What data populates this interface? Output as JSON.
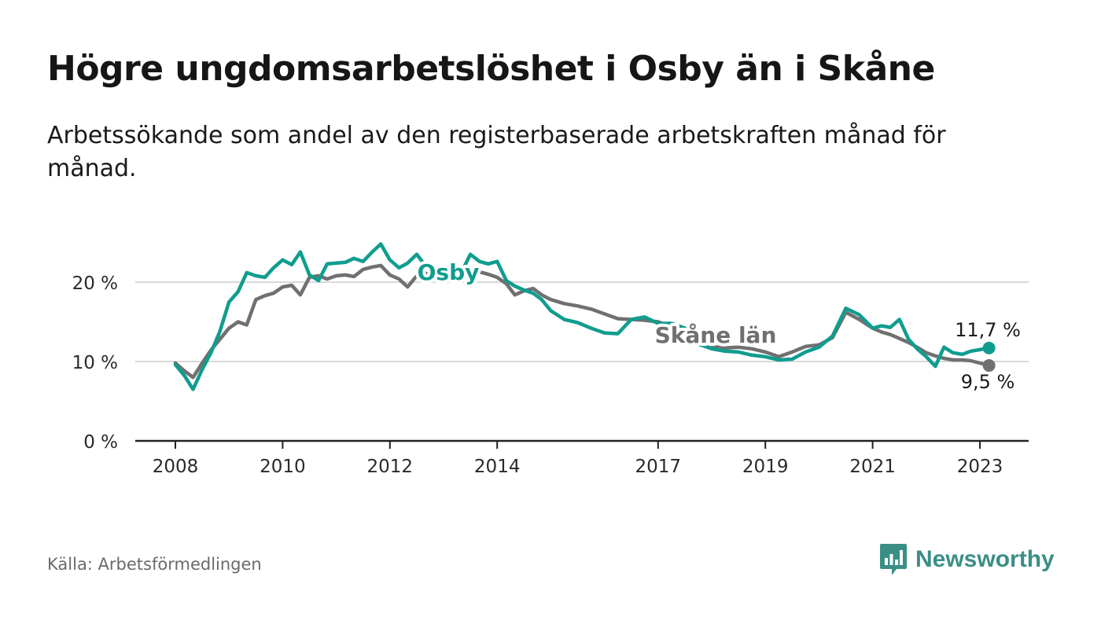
{
  "header": {
    "title": "Högre ungdomsarbetslöshet i Osby än i Skåne",
    "subtitle": "Arbetssökande som andel av den registerbaserade arbetskraften månad för månad."
  },
  "footer": {
    "source": "Källa: Arbetsförmedlingen",
    "brand": "Newsworthy"
  },
  "colors": {
    "osby": "#0f9d8f",
    "skane": "#707070",
    "grid": "#d9d9d9",
    "axis": "#222222",
    "brand": "#3a8f85"
  },
  "chart_data": {
    "type": "line",
    "title": "Högre ungdomsarbetslöshet i Osby än i Skåne",
    "subtitle": "Arbetssökande som andel av den registerbaserade arbetskraften månad för månad.",
    "xlabel": "",
    "ylabel": "",
    "xlim": [
      2008.0,
      2023.25
    ],
    "ylim": [
      0,
      25
    ],
    "yticks": [
      0,
      10,
      20
    ],
    "ytick_labels": [
      "0 %",
      "10 %",
      "20 %"
    ],
    "xticks": [
      2008,
      2010,
      2012,
      2014,
      2017,
      2019,
      2021,
      2023
    ],
    "xtick_labels": [
      "2008",
      "2010",
      "2012",
      "2014",
      "2017",
      "2019",
      "2021",
      "2023"
    ],
    "grid": true,
    "legend": "inline labels",
    "series": [
      {
        "name": "Osby",
        "label_value": "11,7 %",
        "x": [
          2008.0,
          2008.17,
          2008.33,
          2008.5,
          2008.67,
          2008.83,
          2009.0,
          2009.17,
          2009.33,
          2009.5,
          2009.67,
          2009.83,
          2010.0,
          2010.17,
          2010.33,
          2010.5,
          2010.67,
          2010.83,
          2011.0,
          2011.17,
          2011.33,
          2011.5,
          2011.67,
          2011.83,
          2012.0,
          2012.17,
          2012.33,
          2012.5,
          2012.67,
          2013.0,
          2013.33,
          2013.5,
          2013.67,
          2013.83,
          2014.0,
          2014.17,
          2014.33,
          2014.5,
          2014.67,
          2014.83,
          2015.0,
          2015.25,
          2015.5,
          2015.75,
          2016.0,
          2016.25,
          2016.5,
          2016.75,
          2017.0,
          2017.25,
          2017.5,
          2017.75,
          2018.0,
          2018.25,
          2018.5,
          2018.75,
          2019.0,
          2019.25,
          2019.5,
          2019.75,
          2020.0,
          2020.25,
          2020.5,
          2020.75,
          2021.0,
          2021.17,
          2021.33,
          2021.5,
          2021.67,
          2021.83,
          2022.0,
          2022.17,
          2022.33,
          2022.5,
          2022.67,
          2022.83,
          2023.0,
          2023.17
        ],
        "values": [
          9.6,
          8.2,
          6.5,
          9.0,
          11.2,
          13.8,
          17.5,
          18.8,
          21.2,
          20.8,
          20.6,
          21.8,
          22.8,
          22.2,
          23.8,
          20.9,
          20.2,
          22.3,
          22.4,
          22.5,
          23.0,
          22.6,
          23.8,
          24.8,
          22.8,
          21.8,
          22.4,
          23.5,
          22.0,
          21.4,
          21.2,
          23.5,
          22.6,
          22.3,
          22.6,
          20.2,
          19.5,
          19.0,
          18.6,
          17.8,
          16.4,
          15.3,
          14.9,
          14.2,
          13.6,
          13.5,
          15.3,
          15.6,
          14.8,
          14.8,
          14.2,
          12.2,
          11.6,
          11.3,
          11.2,
          10.8,
          10.6,
          10.2,
          10.3,
          11.2,
          11.8,
          13.2,
          16.7,
          15.9,
          14.2,
          14.5,
          14.3,
          15.3,
          12.8,
          11.6,
          10.6,
          9.4,
          11.8,
          11.1,
          10.9,
          11.3,
          11.5,
          11.7
        ]
      },
      {
        "name": "Skåne län",
        "label_value": "9,5 %",
        "x": [
          2008.0,
          2008.17,
          2008.33,
          2008.5,
          2008.67,
          2008.83,
          2009.0,
          2009.17,
          2009.33,
          2009.5,
          2009.67,
          2009.83,
          2010.0,
          2010.17,
          2010.33,
          2010.5,
          2010.67,
          2010.83,
          2011.0,
          2011.17,
          2011.33,
          2011.5,
          2011.67,
          2011.83,
          2012.0,
          2012.17,
          2012.33,
          2012.5,
          2012.67,
          2013.0,
          2013.33,
          2013.5,
          2013.67,
          2013.83,
          2014.0,
          2014.17,
          2014.33,
          2014.5,
          2014.67,
          2014.83,
          2015.0,
          2015.25,
          2015.5,
          2015.75,
          2016.0,
          2016.25,
          2016.5,
          2016.75,
          2017.0,
          2017.25,
          2017.5,
          2017.75,
          2018.0,
          2018.25,
          2018.5,
          2018.75,
          2019.0,
          2019.25,
          2019.5,
          2019.75,
          2020.0,
          2020.25,
          2020.5,
          2020.75,
          2021.0,
          2021.17,
          2021.33,
          2021.5,
          2021.67,
          2021.83,
          2022.0,
          2022.17,
          2022.33,
          2022.5,
          2022.67,
          2022.83,
          2023.0,
          2023.17
        ],
        "values": [
          9.8,
          8.8,
          8.0,
          9.8,
          11.5,
          12.8,
          14.2,
          15.0,
          14.6,
          17.8,
          18.3,
          18.6,
          19.4,
          19.6,
          18.4,
          20.6,
          20.8,
          20.4,
          20.8,
          20.9,
          20.7,
          21.6,
          21.9,
          22.1,
          20.9,
          20.4,
          19.4,
          20.8,
          21.1,
          20.6,
          20.2,
          21.2,
          21.3,
          21.0,
          20.6,
          19.8,
          18.4,
          18.9,
          19.2,
          18.4,
          17.8,
          17.3,
          17.0,
          16.6,
          16.0,
          15.4,
          15.3,
          15.2,
          15.0,
          14.4,
          13.5,
          12.6,
          11.9,
          11.7,
          11.8,
          11.6,
          11.2,
          10.6,
          11.2,
          11.9,
          12.1,
          13.0,
          16.2,
          15.3,
          14.2,
          13.7,
          13.4,
          12.9,
          12.4,
          11.8,
          11.1,
          10.7,
          10.4,
          10.2,
          10.2,
          10.1,
          9.8,
          9.5
        ]
      }
    ]
  }
}
